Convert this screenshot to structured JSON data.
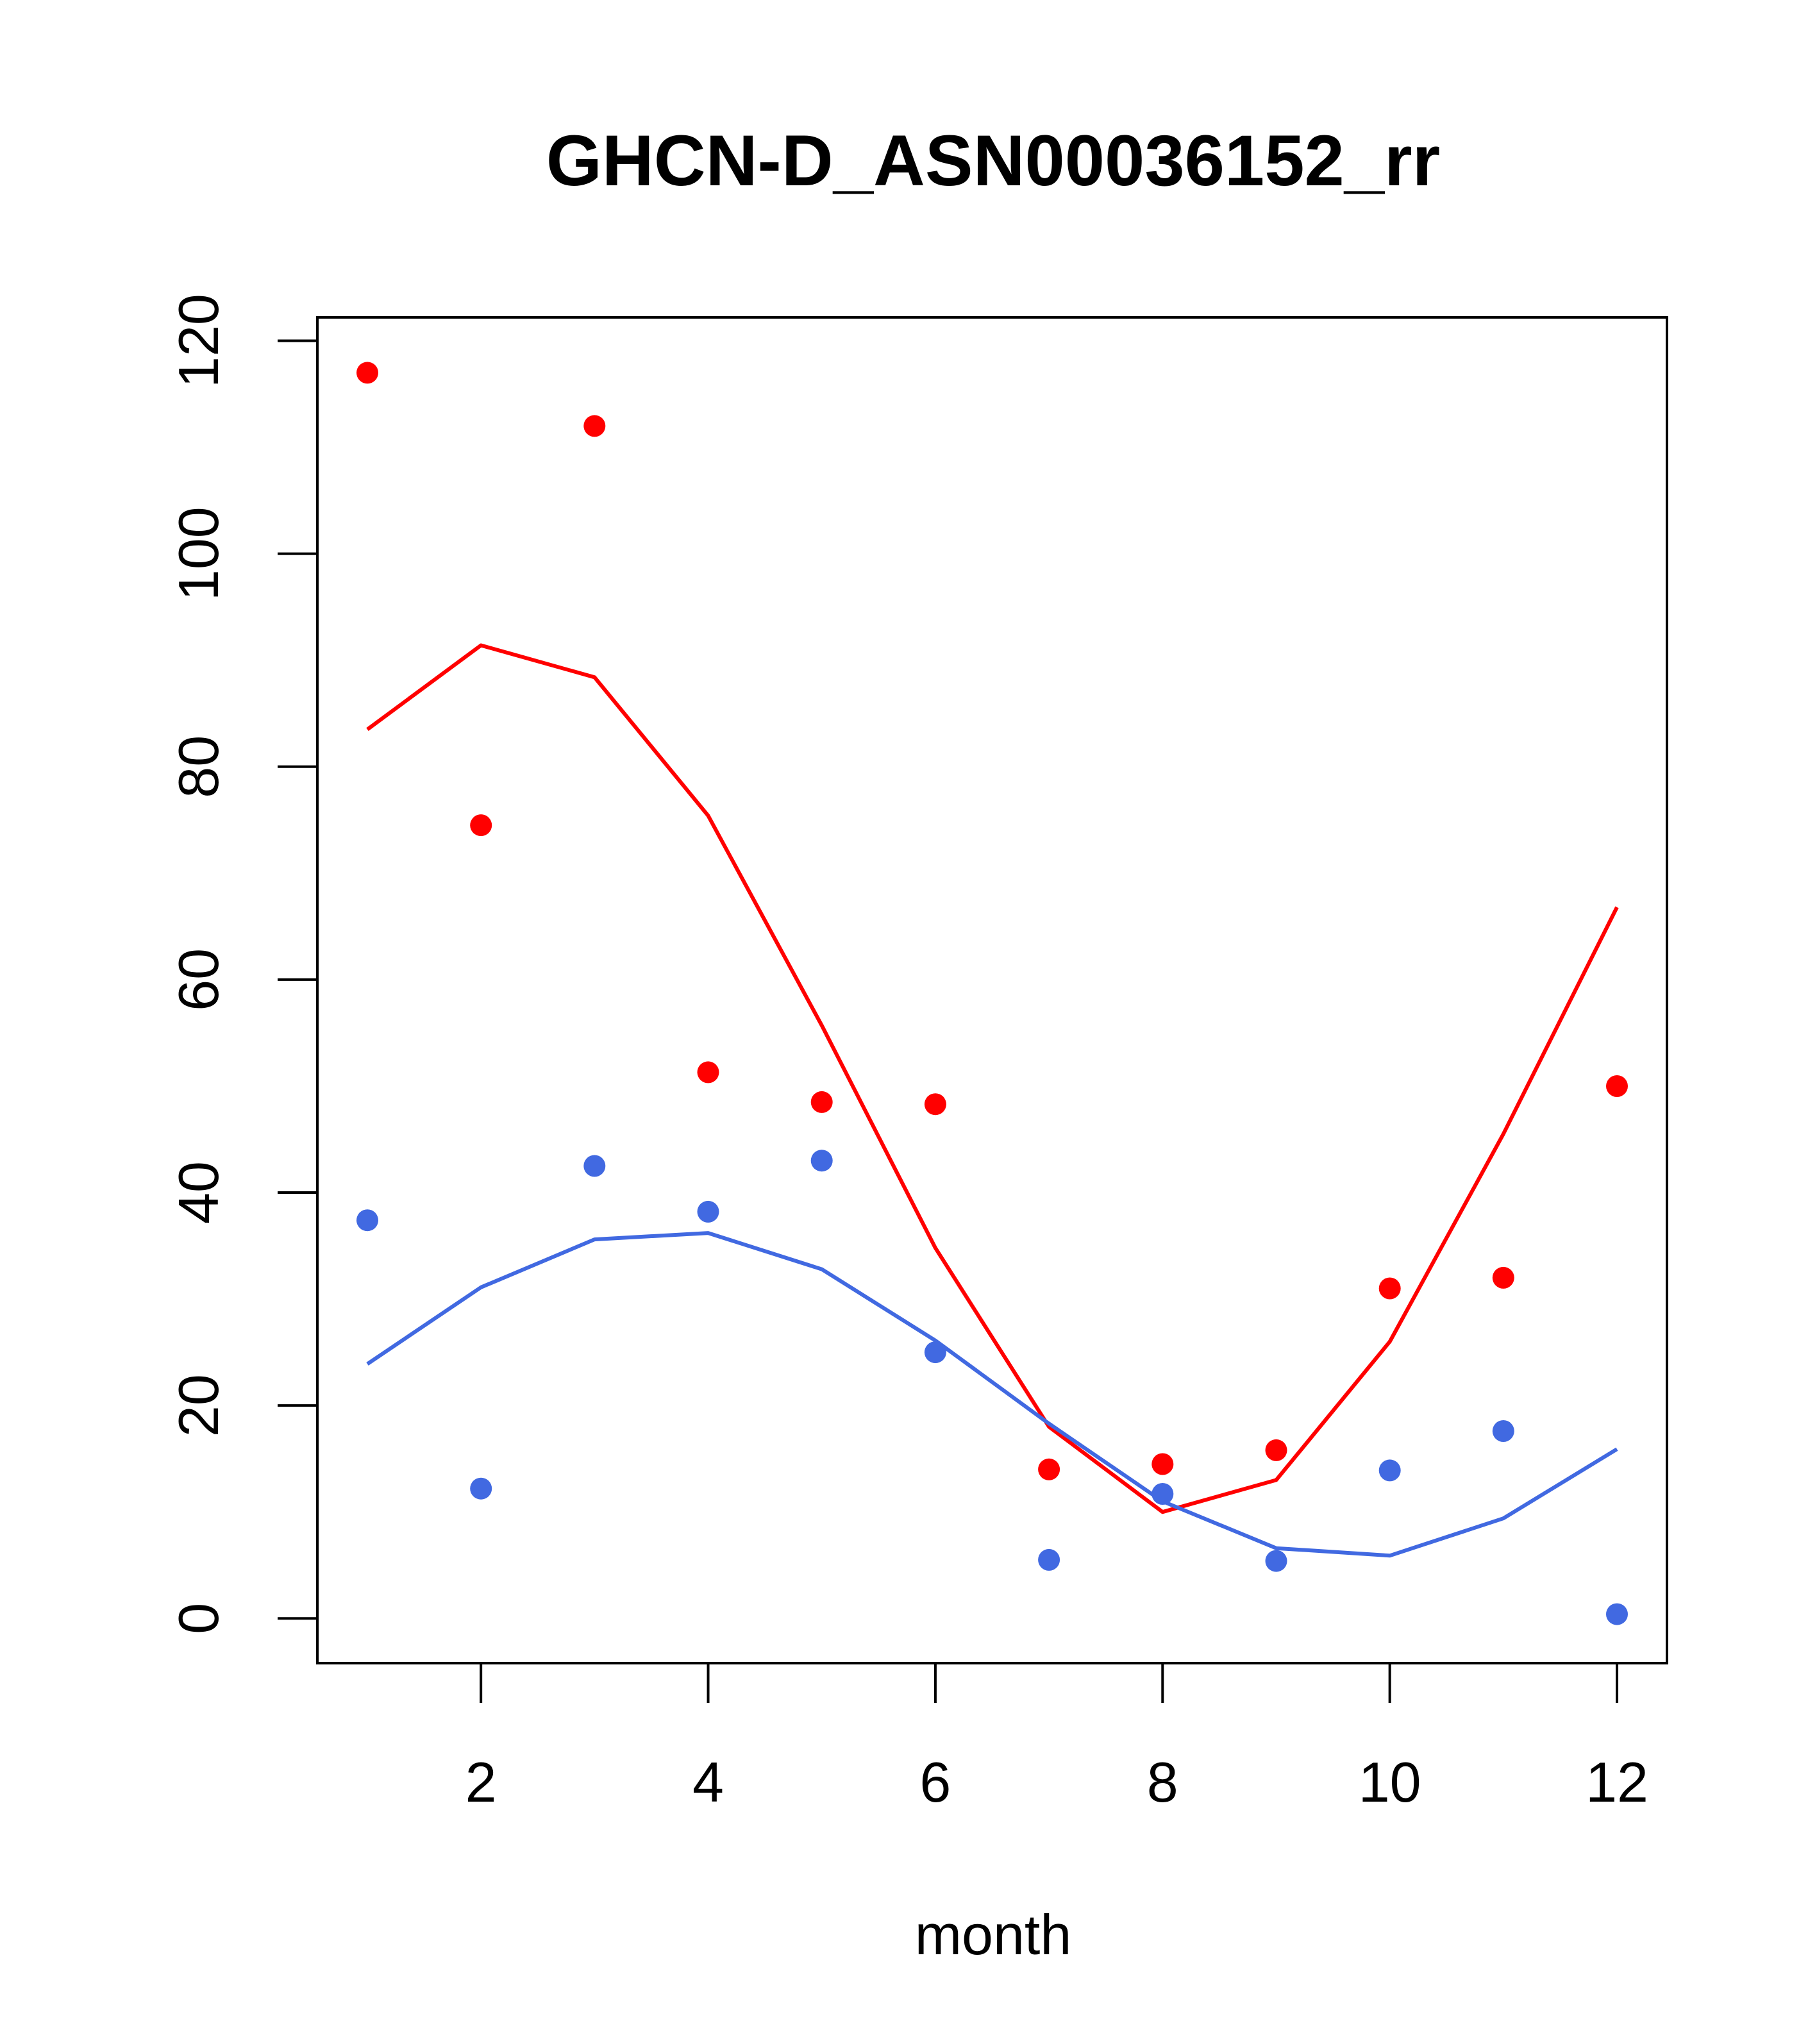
{
  "chart_data": {
    "type": "scatter",
    "title": "GHCN-D_ASN00036152_rr",
    "xlabel": "month",
    "ylabel": "",
    "xlim": [
      0.56,
      12.44
    ],
    "ylim": [
      -4.2,
      122.2
    ],
    "x_ticks": [
      2,
      4,
      6,
      8,
      10,
      12
    ],
    "y_ticks": [
      0,
      20,
      40,
      60,
      80,
      100,
      120
    ],
    "grid": false,
    "series": [
      {
        "color": "#ff0000",
        "x": [
          1,
          2,
          3,
          4,
          5,
          6,
          7,
          8,
          9,
          10,
          11,
          12
        ],
        "points": [
          117,
          74.5,
          112,
          51.3,
          48.5,
          48.3,
          14,
          14.5,
          15.8,
          31,
          32,
          50
        ],
        "line": [
          83.5,
          91.4,
          88.4,
          75.4,
          55.7,
          34.8,
          18,
          10,
          13,
          26,
          45.5,
          66.8
        ]
      },
      {
        "color": "#4169e1",
        "x": [
          1,
          2,
          3,
          4,
          5,
          6,
          7,
          8,
          9,
          10,
          11,
          12
        ],
        "points": [
          37.4,
          12.2,
          42.5,
          38.2,
          43,
          25,
          5.5,
          11.7,
          5.4,
          13.9,
          17.6,
          0.4
        ],
        "line": [
          23.9,
          31.1,
          35.6,
          36.2,
          32.8,
          26.1,
          18.3,
          11,
          6.6,
          5.9,
          9.4,
          15.9
        ]
      }
    ]
  }
}
